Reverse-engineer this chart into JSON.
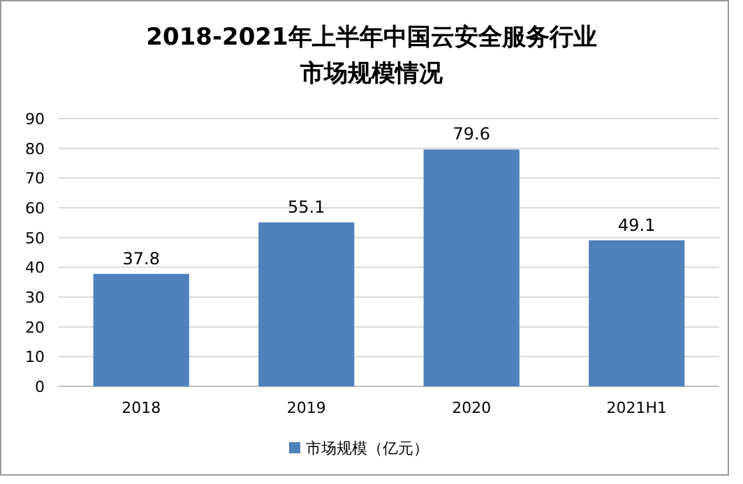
{
  "chart_data": {
    "type": "bar",
    "title": "2018-2021年上半年中国云安全服务行业市场规模情况",
    "categories": [
      "2018",
      "2019",
      "2020",
      "2021H1"
    ],
    "series": [
      {
        "name": "市场规模（亿元）",
        "color": "#4f81bd",
        "values": [
          37.8,
          55.1,
          79.6,
          49.1
        ]
      }
    ],
    "ylim": [
      0,
      90
    ],
    "yticks": [
      0,
      10,
      20,
      30,
      40,
      50,
      60,
      70,
      80,
      90
    ],
    "grid": "y",
    "legend": "bottom",
    "data_labels": true
  }
}
